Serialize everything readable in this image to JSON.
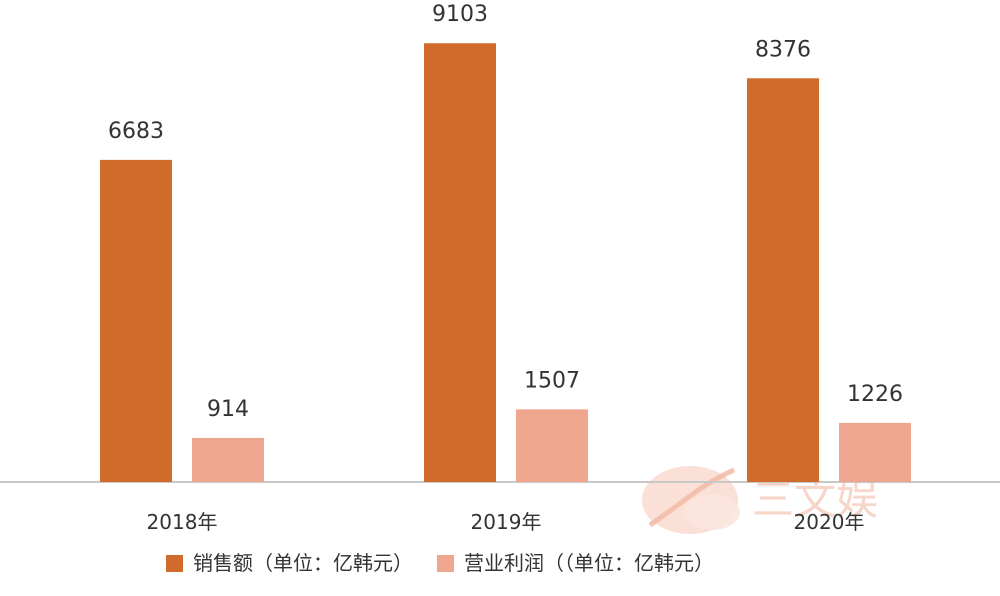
{
  "chart_data": {
    "type": "bar",
    "categories": [
      "2018年",
      "2019年",
      "2020年"
    ],
    "series": [
      {
        "name": "销售额（单位：亿韩元）",
        "values": [
          6683,
          9103,
          8376
        ],
        "color": "#d06b2c"
      },
      {
        "name": "营业利润（（单位：亿韩元）",
        "values": [
          914,
          1507,
          1226
        ],
        "color": "#efa68f"
      }
    ],
    "title": "",
    "xlabel": "",
    "ylabel": "",
    "ylim": [
      0,
      10000
    ],
    "grid": false,
    "legend_position": "bottom"
  },
  "watermark": {
    "text": "三文娱"
  }
}
